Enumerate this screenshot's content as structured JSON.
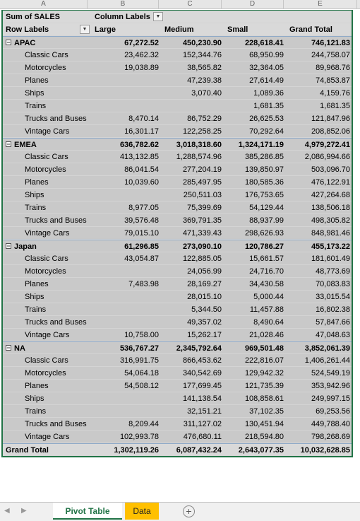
{
  "columns": [
    "A",
    "B",
    "C",
    "D",
    "E"
  ],
  "pivot": {
    "values_label": "Sum of SALES",
    "column_labels": "Column Labels",
    "row_labels": "Row Labels",
    "headers": [
      "Large",
      "Medium",
      "Small",
      "Grand Total"
    ],
    "groups": [
      {
        "name": "APAC",
        "totals": [
          "67,272.52",
          "450,230.90",
          "228,618.41",
          "746,121.83"
        ],
        "items": [
          {
            "name": "Classic Cars",
            "values": [
              "23,462.32",
              "152,344.76",
              "68,950.99",
              "244,758.07"
            ]
          },
          {
            "name": "Motorcycles",
            "values": [
              "19,038.89",
              "38,565.82",
              "32,364.05",
              "89,968.76"
            ]
          },
          {
            "name": "Planes",
            "values": [
              "",
              "47,239.38",
              "27,614.49",
              "74,853.87"
            ]
          },
          {
            "name": "Ships",
            "values": [
              "",
              "3,070.40",
              "1,089.36",
              "4,159.76"
            ]
          },
          {
            "name": "Trains",
            "values": [
              "",
              "",
              "1,681.35",
              "1,681.35"
            ]
          },
          {
            "name": "Trucks and Buses",
            "values": [
              "8,470.14",
              "86,752.29",
              "26,625.53",
              "121,847.96"
            ]
          },
          {
            "name": "Vintage Cars",
            "values": [
              "16,301.17",
              "122,258.25",
              "70,292.64",
              "208,852.06"
            ]
          }
        ]
      },
      {
        "name": "EMEA",
        "totals": [
          "636,782.62",
          "3,018,318.60",
          "1,324,171.19",
          "4,979,272.41"
        ],
        "items": [
          {
            "name": "Classic Cars",
            "values": [
              "413,132.85",
              "1,288,574.96",
              "385,286.85",
              "2,086,994.66"
            ]
          },
          {
            "name": "Motorcycles",
            "values": [
              "86,041.54",
              "277,204.19",
              "139,850.97",
              "503,096.70"
            ]
          },
          {
            "name": "Planes",
            "values": [
              "10,039.60",
              "285,497.95",
              "180,585.36",
              "476,122.91"
            ]
          },
          {
            "name": "Ships",
            "values": [
              "",
              "250,511.03",
              "176,753.65",
              "427,264.68"
            ]
          },
          {
            "name": "Trains",
            "values": [
              "8,977.05",
              "75,399.69",
              "54,129.44",
              "138,506.18"
            ]
          },
          {
            "name": "Trucks and Buses",
            "values": [
              "39,576.48",
              "369,791.35",
              "88,937.99",
              "498,305.82"
            ]
          },
          {
            "name": "Vintage Cars",
            "values": [
              "79,015.10",
              "471,339.43",
              "298,626.93",
              "848,981.46"
            ]
          }
        ]
      },
      {
        "name": "Japan",
        "totals": [
          "61,296.85",
          "273,090.10",
          "120,786.27",
          "455,173.22"
        ],
        "items": [
          {
            "name": "Classic Cars",
            "values": [
              "43,054.87",
              "122,885.05",
              "15,661.57",
              "181,601.49"
            ]
          },
          {
            "name": "Motorcycles",
            "values": [
              "",
              "24,056.99",
              "24,716.70",
              "48,773.69"
            ]
          },
          {
            "name": "Planes",
            "values": [
              "7,483.98",
              "28,169.27",
              "34,430.58",
              "70,083.83"
            ]
          },
          {
            "name": "Ships",
            "values": [
              "",
              "28,015.10",
              "5,000.44",
              "33,015.54"
            ]
          },
          {
            "name": "Trains",
            "values": [
              "",
              "5,344.50",
              "11,457.88",
              "16,802.38"
            ]
          },
          {
            "name": "Trucks and Buses",
            "values": [
              "",
              "49,357.02",
              "8,490.64",
              "57,847.66"
            ]
          },
          {
            "name": "Vintage Cars",
            "values": [
              "10,758.00",
              "15,262.17",
              "21,028.46",
              "47,048.63"
            ]
          }
        ]
      },
      {
        "name": "NA",
        "totals": [
          "536,767.27",
          "2,345,792.64",
          "969,501.48",
          "3,852,061.39"
        ],
        "items": [
          {
            "name": "Classic Cars",
            "values": [
              "316,991.75",
              "866,453.62",
              "222,816.07",
              "1,406,261.44"
            ]
          },
          {
            "name": "Motorcycles",
            "values": [
              "54,064.18",
              "340,542.69",
              "129,942.32",
              "524,549.19"
            ]
          },
          {
            "name": "Planes",
            "values": [
              "54,508.12",
              "177,699.45",
              "121,735.39",
              "353,942.96"
            ]
          },
          {
            "name": "Ships",
            "values": [
              "",
              "141,138.54",
              "108,858.61",
              "249,997.15"
            ]
          },
          {
            "name": "Trains",
            "values": [
              "",
              "32,151.21",
              "37,102.35",
              "69,253.56"
            ]
          },
          {
            "name": "Trucks and Buses",
            "values": [
              "8,209.44",
              "311,127.02",
              "130,451.94",
              "449,788.40"
            ]
          },
          {
            "name": "Vintage Cars",
            "values": [
              "102,993.78",
              "476,680.11",
              "218,594.80",
              "798,268.69"
            ]
          }
        ]
      }
    ],
    "grand_total": {
      "label": "Grand Total",
      "values": [
        "1,302,119.26",
        "6,087,432.24",
        "2,643,077.35",
        "10,032,628.85"
      ]
    }
  },
  "tabs": {
    "sheets": [
      "Pivot Table",
      "Data"
    ],
    "active": "Pivot Table",
    "add_symbol": "+",
    "data_tab_color": "#ffc000",
    "accent_color": "#217346"
  }
}
